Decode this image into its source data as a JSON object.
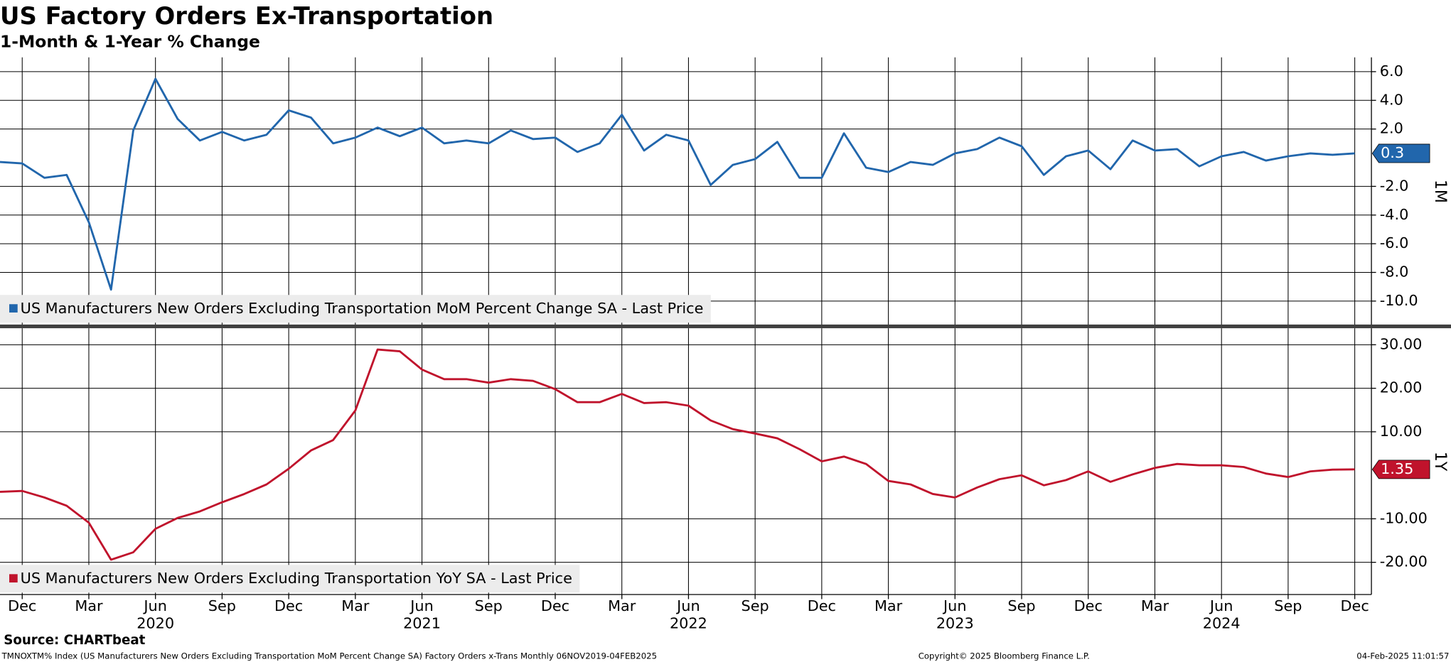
{
  "chart_data": {
    "type": "line",
    "title": "US Factory Orders Ex-Transportation",
    "subtitle": "1-Month & 1-Year % Change",
    "categories": [
      null,
      "Dec",
      null,
      null,
      "Mar",
      null,
      null,
      "Jun",
      null,
      null,
      "Sep",
      null,
      null,
      "Dec",
      null,
      null,
      "Mar",
      null,
      null,
      "Jun",
      null,
      null,
      "Sep",
      null,
      null,
      "Dec",
      null,
      null,
      "Mar",
      null,
      null,
      "Jun",
      null,
      null,
      "Sep",
      null,
      null,
      "Dec",
      null,
      null,
      "Mar",
      null,
      null,
      "Jun",
      null,
      null,
      "Sep",
      null,
      null,
      "Dec",
      null,
      null,
      "Mar",
      null,
      null,
      "Jun",
      null,
      null,
      "Sep",
      null,
      null,
      "Dec"
    ],
    "category_years": [
      null,
      null,
      null,
      null,
      null,
      null,
      null,
      "2020",
      null,
      null,
      null,
      null,
      null,
      null,
      null,
      null,
      null,
      null,
      null,
      "2021",
      null,
      null,
      null,
      null,
      null,
      null,
      null,
      null,
      null,
      null,
      null,
      "2022",
      null,
      null,
      null,
      null,
      null,
      null,
      null,
      null,
      null,
      null,
      null,
      "2023",
      null,
      null,
      null,
      null,
      null,
      null,
      null,
      null,
      null,
      null,
      null,
      "2024",
      null,
      null,
      null,
      null,
      null,
      null
    ],
    "grid": true,
    "panels": [
      {
        "panel_label": "1M",
        "ylim": [
          -11.7,
          7.0
        ],
        "yticks": [
          {
            "value": 6,
            "label": "6.0"
          },
          {
            "value": 4,
            "label": "4.0"
          },
          {
            "value": 2,
            "label": "2.0"
          },
          {
            "value": -2,
            "label": "-2.0"
          },
          {
            "value": -4,
            "label": "-4.0"
          },
          {
            "value": -6,
            "label": "-6.0"
          },
          {
            "value": -8,
            "label": "-8.0"
          },
          {
            "value": -10,
            "label": "-10.0"
          }
        ],
        "series": [
          {
            "name": "US Manufacturers New Orders Excluding Transportation MoM Percent Change SA - Last Price",
            "color": "#2166ac",
            "last_label": "0.3",
            "values": [
              -0.3,
              -0.4,
              -1.4,
              -1.2,
              -4.5,
              -9.2,
              1.9,
              5.5,
              2.7,
              1.2,
              1.8,
              1.2,
              1.6,
              3.3,
              2.8,
              1.0,
              1.4,
              2.1,
              1.5,
              2.1,
              1.0,
              1.2,
              1.0,
              1.9,
              1.3,
              1.4,
              0.4,
              1.0,
              3.0,
              0.5,
              1.6,
              1.2,
              -1.9,
              -0.5,
              -0.1,
              1.1,
              -1.4,
              -1.4,
              1.7,
              -0.7,
              -1.0,
              -0.3,
              -0.5,
              0.3,
              0.6,
              1.4,
              0.8,
              -1.2,
              0.1,
              0.5,
              -0.8,
              1.2,
              0.5,
              0.6,
              -0.6,
              0.1,
              0.4,
              -0.2,
              0.1,
              0.3,
              0.2,
              0.3
            ]
          }
        ]
      },
      {
        "panel_label": "1Y",
        "ylim": [
          -27.4,
          33.8
        ],
        "yticks": [
          {
            "value": 30,
            "label": "30.00"
          },
          {
            "value": 20,
            "label": "20.00"
          },
          {
            "value": 10,
            "label": "10.00"
          },
          {
            "value": -10,
            "label": "-10.00"
          },
          {
            "value": -20,
            "label": "-20.00"
          }
        ],
        "series": [
          {
            "name": "US Manufacturers New Orders Excluding Transportation YoY SA - Last Price",
            "color": "#c0132c",
            "last_label": "1.35",
            "values": [
              -3.8,
              -3.6,
              -5.1,
              -7.0,
              -10.9,
              -19.4,
              -17.7,
              -12.3,
              -9.8,
              -8.3,
              -6.2,
              -4.3,
              -2.1,
              1.5,
              5.7,
              8.1,
              14.9,
              28.9,
              28.5,
              24.3,
              22.1,
              22.1,
              21.3,
              22.1,
              21.7,
              19.8,
              16.8,
              16.8,
              18.7,
              16.6,
              16.8,
              16.0,
              12.6,
              10.6,
              9.6,
              8.5,
              6.0,
              3.2,
              4.3,
              2.6,
              -1.3,
              -2.1,
              -4.3,
              -5.1,
              -2.8,
              -0.9,
              0.0,
              -2.3,
              -1.1,
              0.9,
              -1.5,
              0.2,
              1.7,
              2.6,
              2.3,
              2.3,
              1.9,
              0.4,
              -0.4,
              0.9,
              1.3,
              1.35
            ]
          }
        ]
      }
    ]
  },
  "footer": {
    "source": "Source: CHARTbeat",
    "ticker": "TMNOXTM% Index (US Manufacturers New Orders Excluding Transportation MoM Percent Change SA) Factory Orders x-Trans  Monthly 06NOV2019-04FEB2025",
    "copyright": "Copyright© 2025 Bloomberg Finance L.P.",
    "timestamp": "04-Feb-2025 11:01:57"
  }
}
